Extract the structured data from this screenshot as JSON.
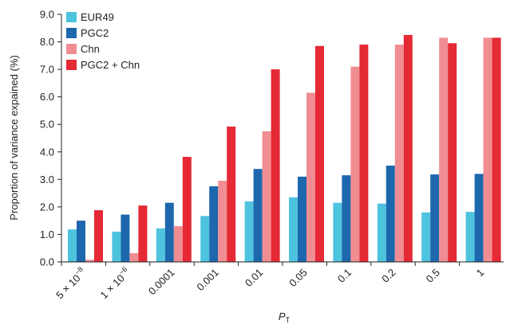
{
  "chart_data": {
    "type": "bar",
    "xlabel": "P",
    "xlabel_sub": "T",
    "ylabel": "Proportion of variance expained (%)",
    "ylim": [
      0,
      9
    ],
    "yticks": [
      "0.0",
      "1.0",
      "2.0",
      "3.0",
      "4.0",
      "5.0",
      "6.0",
      "7.0",
      "8.0",
      "9.0"
    ],
    "categories": [
      {
        "base": "5 × 10",
        "exp": "−8"
      },
      {
        "base": "1 × 10",
        "exp": "−6"
      },
      {
        "base": "0.0001",
        "exp": ""
      },
      {
        "base": "0.001",
        "exp": ""
      },
      {
        "base": "0.01",
        "exp": ""
      },
      {
        "base": "0.05",
        "exp": ""
      },
      {
        "base": "0.1",
        "exp": ""
      },
      {
        "base": "0.2",
        "exp": ""
      },
      {
        "base": "0.5",
        "exp": ""
      },
      {
        "base": "1",
        "exp": ""
      }
    ],
    "legend_position": "top-left",
    "series": [
      {
        "name": "EUR49",
        "color": "#4ec3de",
        "values": [
          1.18,
          1.1,
          1.22,
          1.67,
          2.2,
          2.35,
          2.15,
          2.12,
          1.8,
          1.82
        ]
      },
      {
        "name": "PGC2",
        "color": "#1d67ad",
        "values": [
          1.5,
          1.72,
          2.15,
          2.75,
          3.38,
          3.1,
          3.15,
          3.5,
          3.18,
          3.2
        ]
      },
      {
        "name": "Chn",
        "color": "#f08d93",
        "values": [
          0.08,
          0.32,
          1.3,
          2.95,
          4.75,
          6.15,
          7.1,
          7.9,
          8.15,
          8.15
        ]
      },
      {
        "name": "PGC2 + Chn",
        "color": "#e52935",
        "values": [
          1.88,
          2.05,
          3.82,
          4.92,
          7.0,
          7.85,
          7.9,
          8.25,
          7.95,
          8.15
        ]
      }
    ]
  }
}
